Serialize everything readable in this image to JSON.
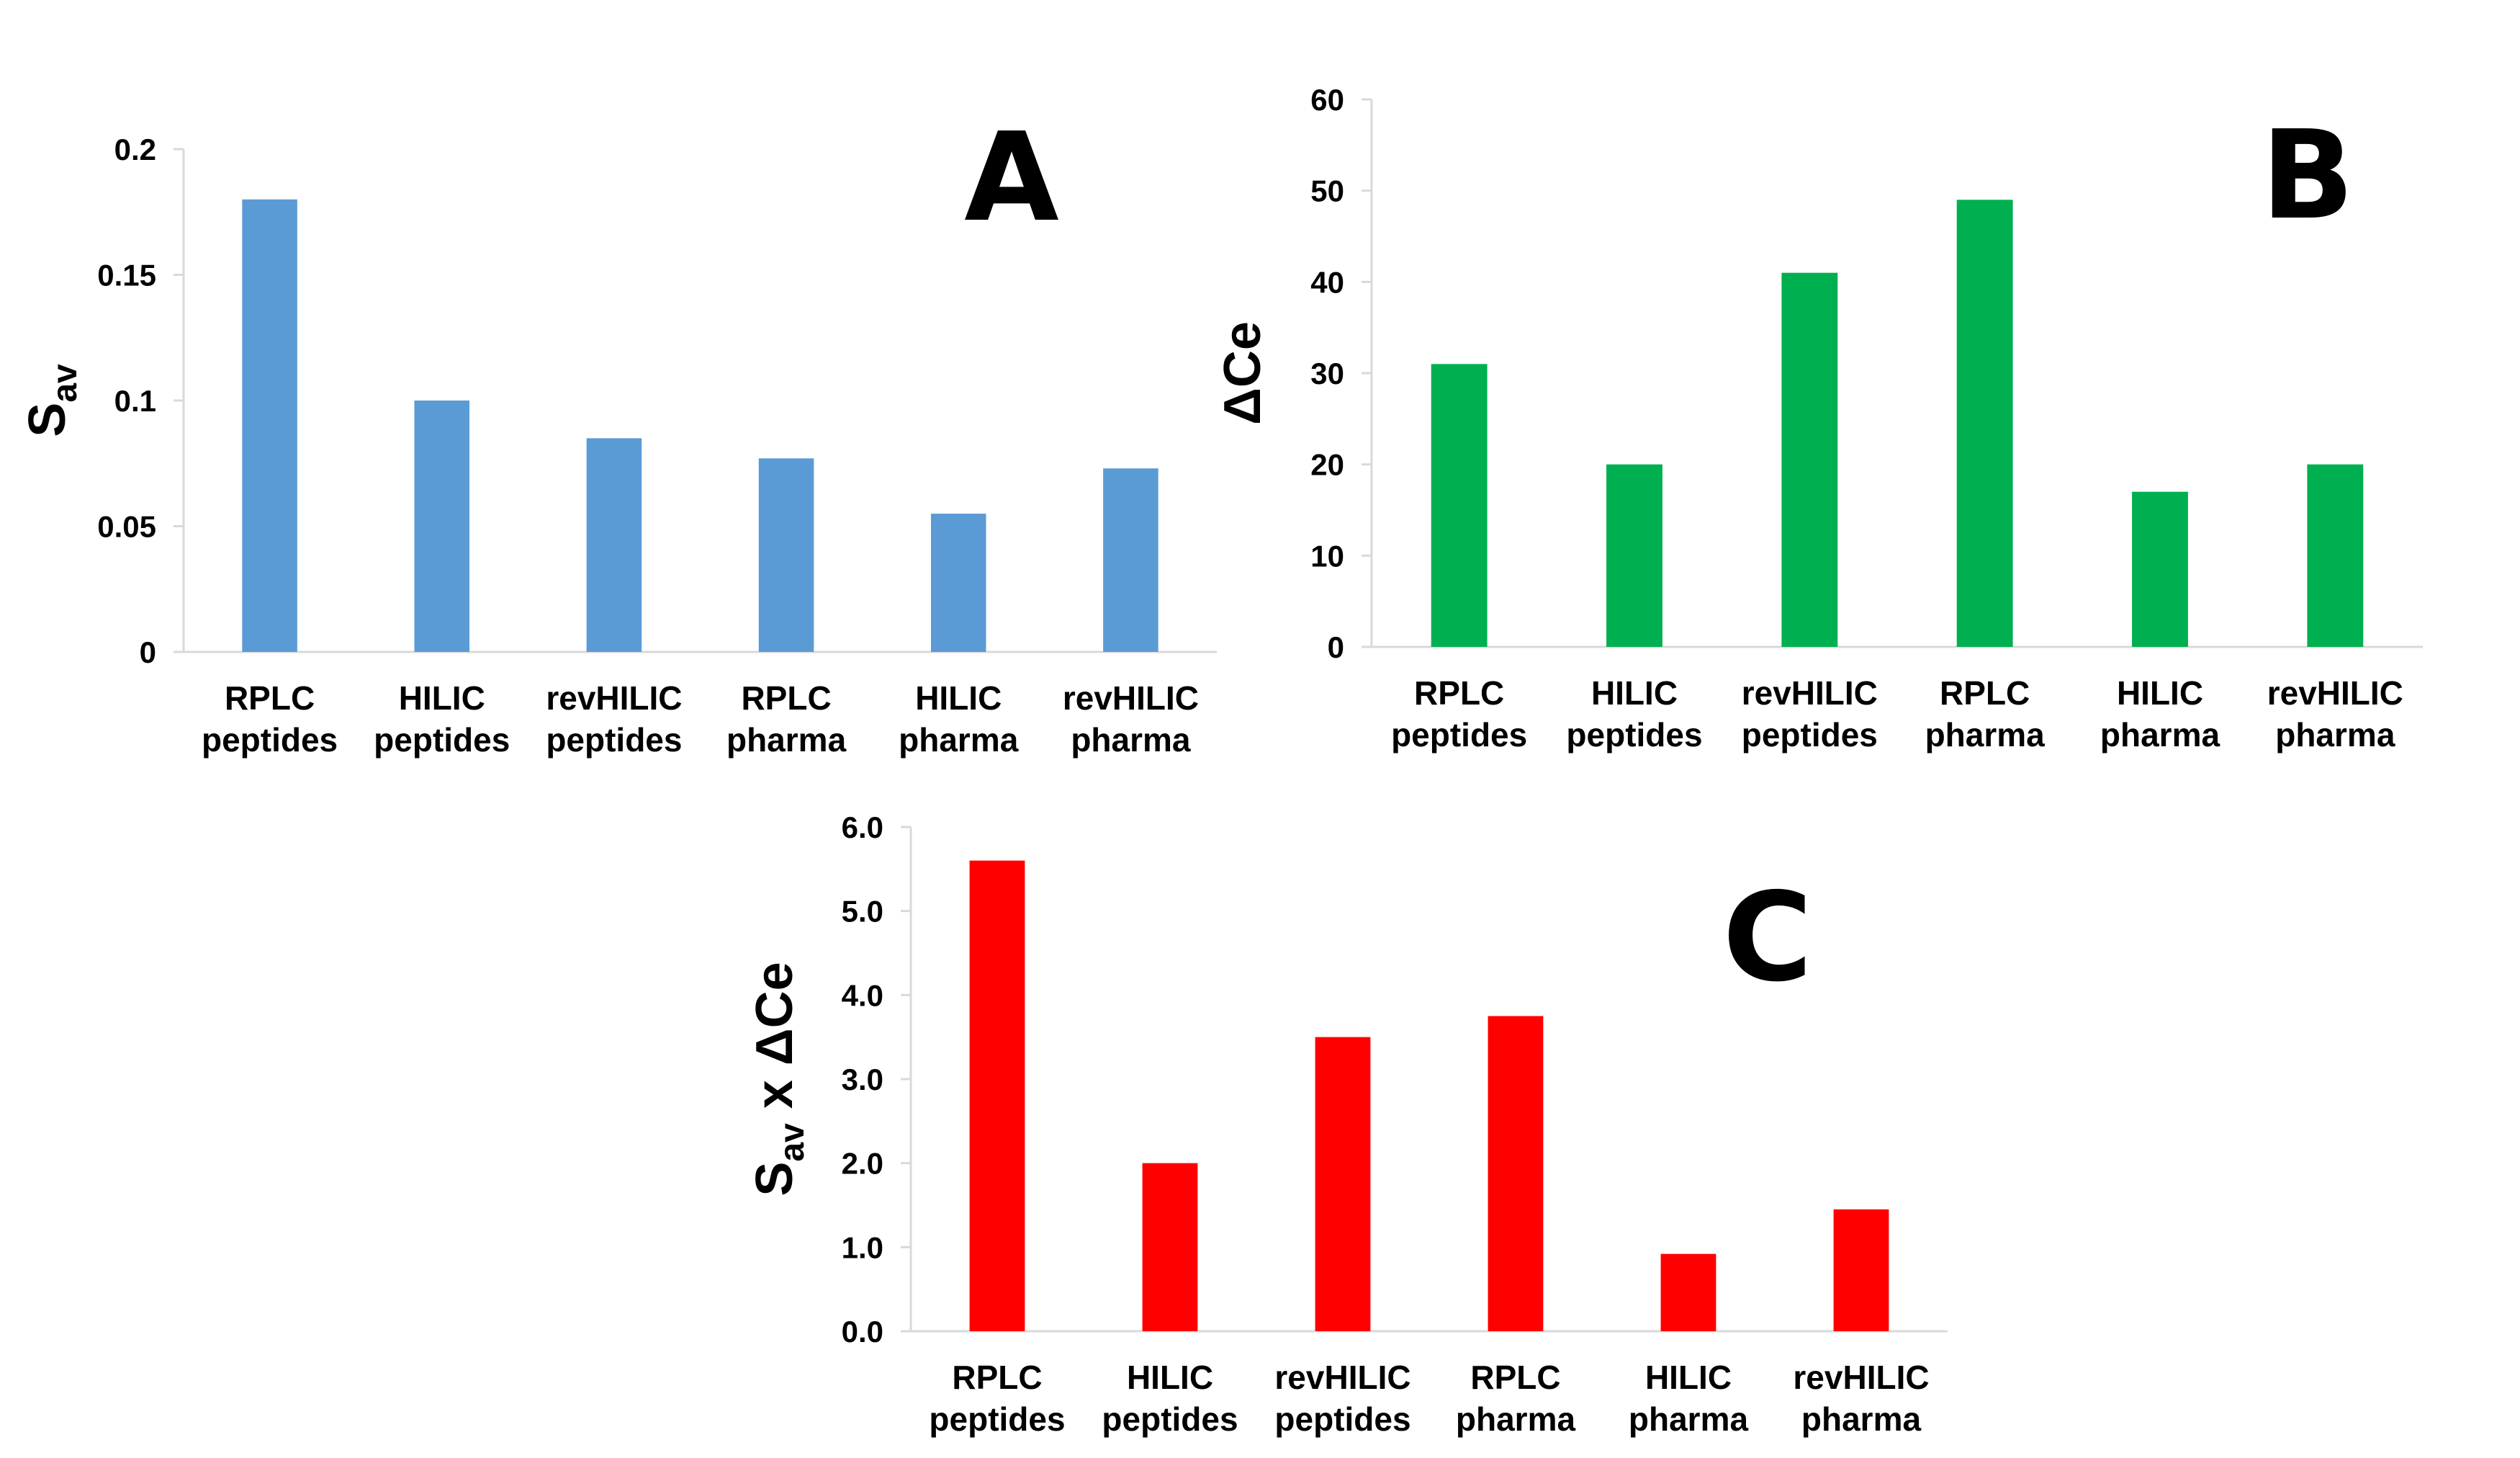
{
  "chart_data": [
    {
      "type": "bar",
      "panel_label": "A",
      "categories": [
        [
          "RPLC",
          "peptides"
        ],
        [
          "HILIC",
          "peptides"
        ],
        [
          "revHILIC",
          "peptides"
        ],
        [
          "RPLC",
          "pharma"
        ],
        [
          "HILIC",
          "pharma"
        ],
        [
          "revHILIC",
          "pharma"
        ]
      ],
      "values": [
        0.18,
        0.1,
        0.085,
        0.077,
        0.055,
        0.073
      ],
      "ylabel_main": "S",
      "ylabel_sub": "av",
      "ylabel_rest": "",
      "ylim": [
        0,
        0.2
      ],
      "yticks": [
        0,
        0.05,
        0.1,
        0.15,
        0.2
      ],
      "ytick_labels": [
        "0",
        "0.05",
        "0.1",
        "0.15",
        "0.2"
      ],
      "color": "#5b9bd5"
    },
    {
      "type": "bar",
      "panel_label": "B",
      "categories": [
        [
          "RPLC",
          "peptides"
        ],
        [
          "HILIC",
          "peptides"
        ],
        [
          "revHILIC",
          "peptides"
        ],
        [
          "RPLC",
          "pharma"
        ],
        [
          "HILIC",
          "pharma"
        ],
        [
          "revHILIC",
          "pharma"
        ]
      ],
      "values": [
        31,
        20,
        41,
        49,
        17,
        20
      ],
      "ylabel_main": "ΔCe",
      "ylabel_sub": "",
      "ylabel_rest": "",
      "ylim": [
        0,
        60
      ],
      "yticks": [
        0,
        10,
        20,
        30,
        40,
        50,
        60
      ],
      "ytick_labels": [
        "0",
        "10",
        "20",
        "30",
        "40",
        "50",
        "60"
      ],
      "color": "#00b050"
    },
    {
      "type": "bar",
      "panel_label": "C",
      "categories": [
        [
          "RPLC",
          "peptides"
        ],
        [
          "HILIC",
          "peptides"
        ],
        [
          "revHILIC",
          "peptides"
        ],
        [
          "RPLC",
          "pharma"
        ],
        [
          "HILIC",
          "pharma"
        ],
        [
          "revHILIC",
          "pharma"
        ]
      ],
      "values": [
        5.6,
        2.0,
        3.5,
        3.75,
        0.92,
        1.45
      ],
      "ylabel_main": "S",
      "ylabel_sub": "av",
      "ylabel_rest": " x ΔCe",
      "ylim": [
        0,
        6
      ],
      "yticks": [
        0,
        1,
        2,
        3,
        4,
        5,
        6
      ],
      "ytick_labels": [
        "0.0",
        "1.0",
        "2.0",
        "3.0",
        "4.0",
        "5.0",
        "6.0"
      ],
      "color": "#ff0000"
    }
  ]
}
